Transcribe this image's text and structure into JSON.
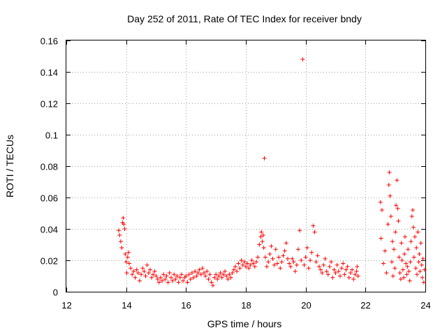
{
  "chart_data": {
    "type": "scatter",
    "title": "Day 252 of 2011, Rate Of TEC Index for receiver bndy",
    "xlabel": "GPS time / hours",
    "ylabel": "ROTI / TECUs",
    "xlim": [
      12,
      24
    ],
    "ylim": [
      0,
      0.16
    ],
    "xticks": [
      12,
      14,
      16,
      18,
      20,
      22,
      24
    ],
    "yticks": [
      0,
      0.02,
      0.04,
      0.06,
      0.08,
      0.1,
      0.12,
      0.14,
      0.16
    ],
    "xtick_labels": [
      "12",
      "14",
      "16",
      "18",
      "20",
      "22",
      "24"
    ],
    "ytick_labels": [
      "0",
      "0.02",
      "0.04",
      "0.06",
      "0.08",
      "0.1",
      "0.12",
      "0.14",
      "0.16"
    ],
    "grid": true,
    "marker": "+",
    "color": "#ff0000",
    "series": [
      {
        "name": "bndy",
        "points": [
          [
            13.75,
            0.039
          ],
          [
            13.78,
            0.036
          ],
          [
            13.82,
            0.032
          ],
          [
            13.85,
            0.028
          ],
          [
            13.88,
            0.044
          ],
          [
            13.9,
            0.047
          ],
          [
            13.92,
            0.043
          ],
          [
            13.95,
            0.04
          ],
          [
            13.97,
            0.024
          ],
          [
            14.0,
            0.019
          ],
          [
            14.02,
            0.012
          ],
          [
            14.05,
            0.022
          ],
          [
            14.08,
            0.025
          ],
          [
            14.1,
            0.018
          ],
          [
            14.15,
            0.015
          ],
          [
            14.2,
            0.011
          ],
          [
            14.25,
            0.013
          ],
          [
            14.3,
            0.009
          ],
          [
            14.35,
            0.014
          ],
          [
            14.4,
            0.012
          ],
          [
            14.45,
            0.007
          ],
          [
            14.5,
            0.011
          ],
          [
            14.55,
            0.015
          ],
          [
            14.6,
            0.013
          ],
          [
            14.65,
            0.01
          ],
          [
            14.7,
            0.017
          ],
          [
            14.75,
            0.012
          ],
          [
            14.8,
            0.014
          ],
          [
            14.85,
            0.009
          ],
          [
            14.9,
            0.011
          ],
          [
            14.95,
            0.013
          ],
          [
            15.0,
            0.01
          ],
          [
            15.05,
            0.008
          ],
          [
            15.1,
            0.006
          ],
          [
            15.15,
            0.009
          ],
          [
            15.2,
            0.007
          ],
          [
            15.25,
            0.011
          ],
          [
            15.3,
            0.008
          ],
          [
            15.35,
            0.01
          ],
          [
            15.4,
            0.006
          ],
          [
            15.45,
            0.012
          ],
          [
            15.5,
            0.009
          ],
          [
            15.55,
            0.007
          ],
          [
            15.6,
            0.011
          ],
          [
            15.65,
            0.008
          ],
          [
            15.7,
            0.01
          ],
          [
            15.75,
            0.006
          ],
          [
            15.8,
            0.009
          ],
          [
            15.85,
            0.011
          ],
          [
            15.9,
            0.007
          ],
          [
            15.95,
            0.009
          ],
          [
            16.0,
            0.01
          ],
          [
            16.05,
            0.006
          ],
          [
            16.1,
            0.011
          ],
          [
            16.15,
            0.008
          ],
          [
            16.2,
            0.012
          ],
          [
            16.25,
            0.009
          ],
          [
            16.3,
            0.013
          ],
          [
            16.35,
            0.01
          ],
          [
            16.4,
            0.012
          ],
          [
            16.45,
            0.014
          ],
          [
            16.5,
            0.011
          ],
          [
            16.55,
            0.015
          ],
          [
            16.6,
            0.012
          ],
          [
            16.65,
            0.01
          ],
          [
            16.7,
            0.013
          ],
          [
            16.75,
            0.008
          ],
          [
            16.8,
            0.011
          ],
          [
            16.85,
            0.006
          ],
          [
            16.9,
            0.004
          ],
          [
            16.95,
            0.009
          ],
          [
            17.0,
            0.011
          ],
          [
            17.05,
            0.008
          ],
          [
            17.1,
            0.01
          ],
          [
            17.15,
            0.012
          ],
          [
            17.2,
            0.009
          ],
          [
            17.25,
            0.011
          ],
          [
            17.3,
            0.013
          ],
          [
            17.35,
            0.01
          ],
          [
            17.4,
            0.008
          ],
          [
            17.45,
            0.011
          ],
          [
            17.5,
            0.009
          ],
          [
            17.55,
            0.012
          ],
          [
            17.6,
            0.014
          ],
          [
            17.65,
            0.016
          ],
          [
            17.7,
            0.013
          ],
          [
            17.75,
            0.018
          ],
          [
            17.8,
            0.015
          ],
          [
            17.85,
            0.02
          ],
          [
            17.9,
            0.017
          ],
          [
            17.95,
            0.019
          ],
          [
            18.0,
            0.016
          ],
          [
            18.05,
            0.018
          ],
          [
            18.1,
            0.015
          ],
          [
            18.15,
            0.017
          ],
          [
            18.2,
            0.02
          ],
          [
            18.25,
            0.018
          ],
          [
            18.3,
            0.016
          ],
          [
            18.35,
            0.019
          ],
          [
            18.4,
            0.022
          ],
          [
            18.45,
            0.03
          ],
          [
            18.5,
            0.035
          ],
          [
            18.52,
            0.038
          ],
          [
            18.55,
            0.032
          ],
          [
            18.58,
            0.036
          ],
          [
            18.6,
            0.028
          ],
          [
            18.62,
            0.085
          ],
          [
            18.65,
            0.022
          ],
          [
            18.7,
            0.016
          ],
          [
            18.75,
            0.019
          ],
          [
            18.8,
            0.024
          ],
          [
            18.85,
            0.029
          ],
          [
            18.9,
            0.021
          ],
          [
            18.95,
            0.017
          ],
          [
            19.0,
            0.027
          ],
          [
            19.05,
            0.018
          ],
          [
            19.1,
            0.022
          ],
          [
            19.15,
            0.015
          ],
          [
            19.2,
            0.019
          ],
          [
            19.25,
            0.023
          ],
          [
            19.3,
            0.026
          ],
          [
            19.35,
            0.031
          ],
          [
            19.4,
            0.021
          ],
          [
            19.45,
            0.018
          ],
          [
            19.5,
            0.016
          ],
          [
            19.55,
            0.021
          ],
          [
            19.6,
            0.019
          ],
          [
            19.65,
            0.013
          ],
          [
            19.7,
            0.017
          ],
          [
            19.75,
            0.027
          ],
          [
            19.8,
            0.039
          ],
          [
            19.85,
            0.02
          ],
          [
            19.9,
            0.148
          ],
          [
            19.95,
            0.017
          ],
          [
            20.0,
            0.022
          ],
          [
            20.05,
            0.028
          ],
          [
            20.1,
            0.015
          ],
          [
            20.15,
            0.02
          ],
          [
            20.2,
            0.025
          ],
          [
            20.25,
            0.042
          ],
          [
            20.3,
            0.038
          ],
          [
            20.35,
            0.019
          ],
          [
            20.4,
            0.023
          ],
          [
            20.45,
            0.016
          ],
          [
            20.5,
            0.014
          ],
          [
            20.55,
            0.012
          ],
          [
            20.6,
            0.017
          ],
          [
            20.65,
            0.021
          ],
          [
            20.7,
            0.013
          ],
          [
            20.75,
            0.011
          ],
          [
            20.8,
            0.016
          ],
          [
            20.85,
            0.019
          ],
          [
            20.9,
            0.009
          ],
          [
            20.95,
            0.014
          ],
          [
            21.0,
            0.012
          ],
          [
            21.05,
            0.017
          ],
          [
            21.1,
            0.013
          ],
          [
            21.15,
            0.01
          ],
          [
            21.2,
            0.015
          ],
          [
            21.25,
            0.018
          ],
          [
            21.3,
            0.011
          ],
          [
            21.35,
            0.014
          ],
          [
            21.4,
            0.016
          ],
          [
            21.45,
            0.009
          ],
          [
            21.5,
            0.012
          ],
          [
            21.55,
            0.014
          ],
          [
            21.6,
            0.008
          ],
          [
            21.65,
            0.011
          ],
          [
            21.7,
            0.013
          ],
          [
            21.72,
            0.016
          ],
          [
            21.75,
            0.01
          ],
          [
            22.5,
            0.057
          ],
          [
            22.55,
            0.052
          ],
          [
            22.52,
            0.034
          ],
          [
            22.6,
            0.018
          ],
          [
            22.65,
            0.026
          ],
          [
            22.7,
            0.012
          ],
          [
            22.75,
            0.043
          ],
          [
            22.78,
            0.068
          ],
          [
            22.8,
            0.076
          ],
          [
            22.82,
            0.061
          ],
          [
            22.85,
            0.048
          ],
          [
            22.88,
            0.019
          ],
          [
            22.9,
            0.032
          ],
          [
            22.92,
            0.01
          ],
          [
            22.95,
            0.027
          ],
          [
            22.98,
            0.015
          ],
          [
            23.0,
            0.038
          ],
          [
            23.02,
            0.055
          ],
          [
            23.05,
            0.071
          ],
          [
            23.08,
            0.053
          ],
          [
            23.1,
            0.045
          ],
          [
            23.12,
            0.022
          ],
          [
            23.15,
            0.012
          ],
          [
            23.18,
            0.008
          ],
          [
            23.2,
            0.031
          ],
          [
            23.22,
            0.02
          ],
          [
            23.25,
            0.014
          ],
          [
            23.28,
            0.009
          ],
          [
            23.3,
            0.024
          ],
          [
            23.32,
            0.035
          ],
          [
            23.35,
            0.018
          ],
          [
            23.38,
            0.011
          ],
          [
            23.4,
            0.016
          ],
          [
            23.42,
            0.027
          ],
          [
            23.45,
            0.013
          ],
          [
            23.48,
            0.007
          ],
          [
            23.5,
            0.019
          ],
          [
            23.52,
            0.032
          ],
          [
            23.55,
            0.048
          ],
          [
            23.58,
            0.052
          ],
          [
            23.6,
            0.041
          ],
          [
            23.62,
            0.022
          ],
          [
            23.65,
            0.035
          ],
          [
            23.68,
            0.015
          ],
          [
            23.7,
            0.028
          ],
          [
            23.72,
            0.011
          ],
          [
            23.75,
            0.038
          ],
          [
            23.78,
            0.019
          ],
          [
            23.8,
            0.024
          ],
          [
            23.82,
            0.013
          ],
          [
            23.85,
            0.031
          ],
          [
            23.88,
            0.017
          ],
          [
            23.9,
            0.009
          ],
          [
            23.92,
            0.021
          ],
          [
            23.95,
            0.006
          ],
          [
            23.97,
            0.014
          ]
        ]
      }
    ]
  }
}
